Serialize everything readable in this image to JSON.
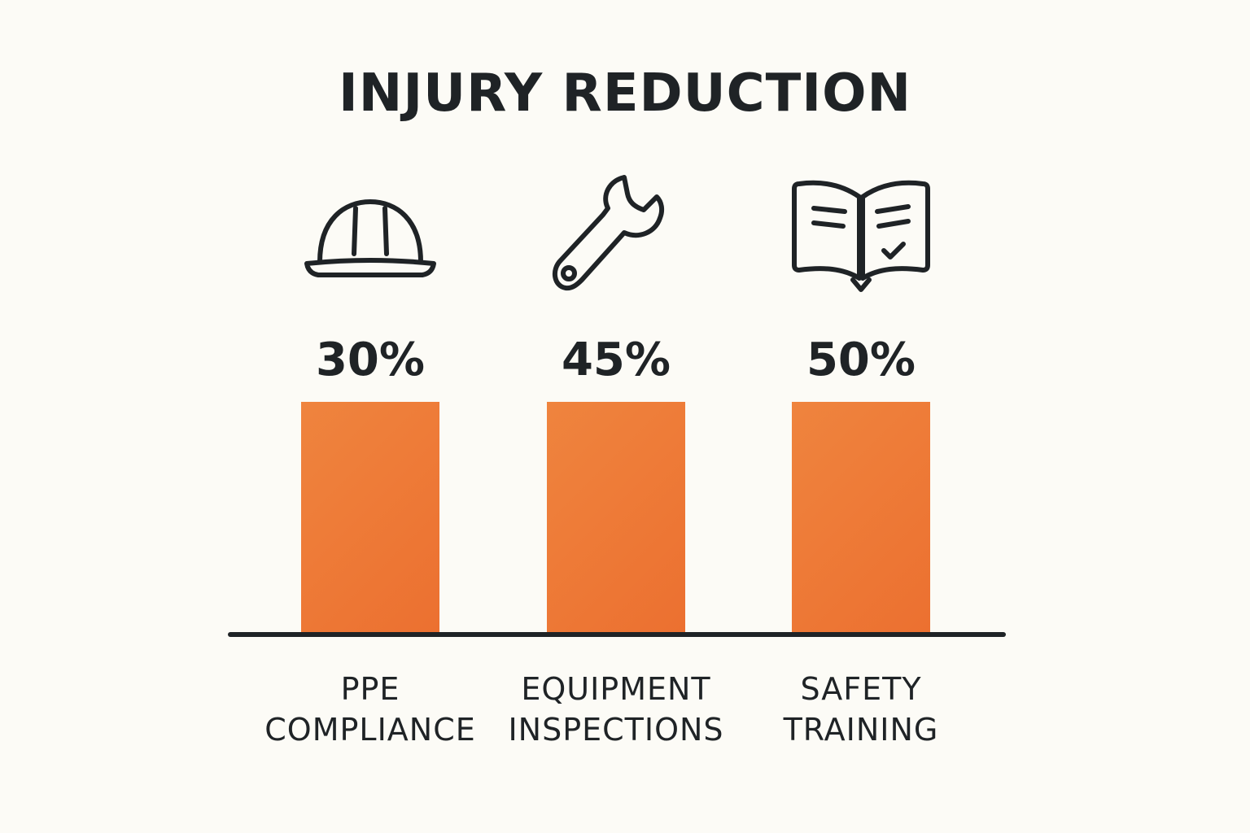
{
  "chart_data": {
    "type": "bar",
    "title": "INJURY REDUCTION",
    "xlabel": "",
    "ylabel": "",
    "categories": [
      "PPE COMPLIANCE",
      "EQUIPMENT INSPECTIONS",
      "SAFETY TRAINING"
    ],
    "category_lines": [
      [
        "PPE",
        "COMPLIANCE"
      ],
      [
        "EQUIPMENT",
        "INSPECTIONS"
      ],
      [
        "SAFETY",
        "TRAINING"
      ]
    ],
    "values": [
      30,
      45,
      50
    ],
    "value_labels": [
      "30%",
      "45%",
      "50%"
    ],
    "icons": [
      "hard-hat-icon",
      "wrench-icon",
      "book-check-icon"
    ],
    "grid": false,
    "legend": "none",
    "colors": {
      "bar": "#ec7030",
      "text": "#1f2326",
      "background": "#fcfbf6"
    }
  }
}
